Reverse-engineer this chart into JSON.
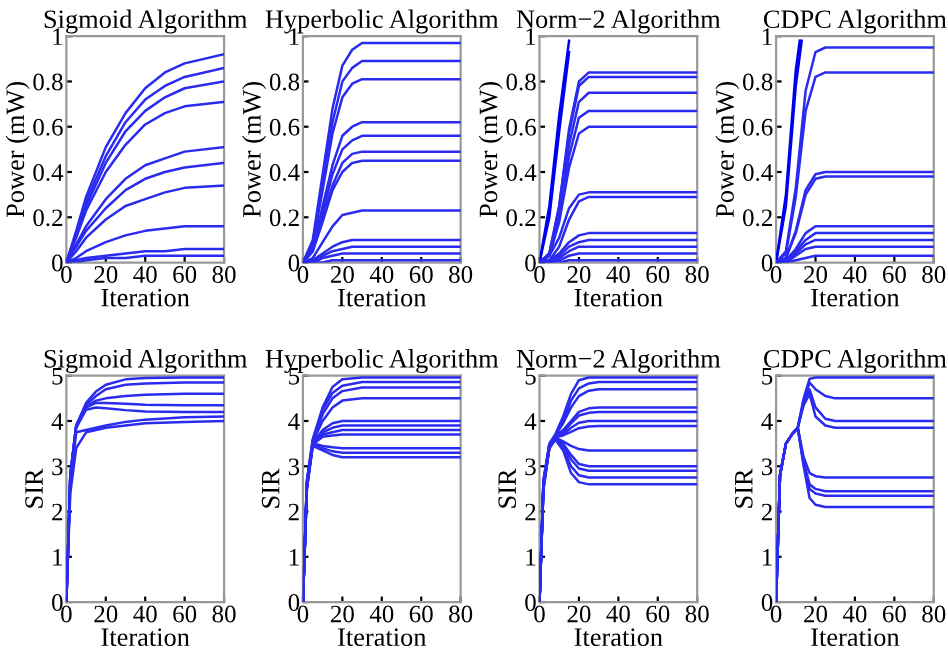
{
  "chart_data": [
    {
      "type": "line",
      "title": "Sigmoid Algorithm",
      "xlabel": "Iteration",
      "ylabel": "Power (mW)",
      "xlim": [
        0,
        80
      ],
      "ylim": [
        0,
        1
      ],
      "xticks": [
        0,
        20,
        40,
        60,
        80
      ],
      "yticks": [
        0,
        0.2,
        0.4,
        0.6,
        0.8,
        1
      ],
      "grid": false,
      "x": [
        0,
        5,
        10,
        20,
        30,
        40,
        50,
        60,
        80
      ],
      "series": [
        {
          "color": "#2b2bf0",
          "values": [
            0,
            0.14,
            0.29,
            0.51,
            0.66,
            0.77,
            0.84,
            0.88,
            0.92
          ]
        },
        {
          "color": "#2b2bf0",
          "values": [
            0,
            0.13,
            0.27,
            0.47,
            0.62,
            0.72,
            0.78,
            0.82,
            0.86
          ]
        },
        {
          "color": "#2b2bf0",
          "values": [
            0,
            0.12,
            0.25,
            0.44,
            0.58,
            0.67,
            0.73,
            0.77,
            0.8
          ]
        },
        {
          "color": "#2b2bf0",
          "values": [
            0,
            0.11,
            0.23,
            0.4,
            0.52,
            0.61,
            0.66,
            0.69,
            0.71
          ]
        },
        {
          "color": "#2b2bf0",
          "values": [
            0,
            0.08,
            0.16,
            0.28,
            0.37,
            0.43,
            0.46,
            0.49,
            0.51
          ]
        },
        {
          "color": "#2b2bf0",
          "values": [
            0,
            0.07,
            0.14,
            0.24,
            0.32,
            0.37,
            0.4,
            0.42,
            0.44
          ]
        },
        {
          "color": "#2b2bf0",
          "values": [
            0,
            0.05,
            0.11,
            0.19,
            0.25,
            0.28,
            0.31,
            0.33,
            0.34
          ]
        },
        {
          "color": "#2b2bf0",
          "values": [
            0,
            0.02,
            0.05,
            0.09,
            0.12,
            0.14,
            0.15,
            0.16,
            0.16
          ]
        },
        {
          "color": "#2b2bf0",
          "values": [
            0,
            0.01,
            0.02,
            0.03,
            0.04,
            0.05,
            0.05,
            0.06,
            0.06
          ]
        },
        {
          "color": "#2b2bf0",
          "values": [
            0,
            0,
            0.01,
            0.02,
            0.02,
            0.03,
            0.03,
            0.03,
            0.03
          ]
        }
      ]
    },
    {
      "type": "line",
      "title": "Hyperbolic Algorithm",
      "xlabel": "Iteration",
      "ylabel": "Power (mW)",
      "xlim": [
        0,
        80
      ],
      "ylim": [
        0,
        1
      ],
      "xticks": [
        0,
        20,
        40,
        60,
        80
      ],
      "yticks": [
        0,
        0.2,
        0.4,
        0.6,
        0.8,
        1
      ],
      "grid": false,
      "x": [
        0,
        5,
        10,
        15,
        20,
        25,
        30,
        40,
        80
      ],
      "series": [
        {
          "color": "#2b2bf0",
          "values": [
            0,
            0.1,
            0.39,
            0.68,
            0.87,
            0.94,
            0.97,
            0.97,
            0.97
          ]
        },
        {
          "color": "#2b2bf0",
          "values": [
            0,
            0.09,
            0.36,
            0.62,
            0.8,
            0.86,
            0.89,
            0.89,
            0.89
          ]
        },
        {
          "color": "#2b2bf0",
          "values": [
            0,
            0.08,
            0.32,
            0.57,
            0.73,
            0.79,
            0.81,
            0.81,
            0.81
          ]
        },
        {
          "color": "#2b2bf0",
          "values": [
            0,
            0.06,
            0.25,
            0.43,
            0.56,
            0.6,
            0.62,
            0.62,
            0.62
          ]
        },
        {
          "color": "#2b2bf0",
          "values": [
            0,
            0.06,
            0.22,
            0.39,
            0.5,
            0.54,
            0.56,
            0.56,
            0.56
          ]
        },
        {
          "color": "#2b2bf0",
          "values": [
            0,
            0.05,
            0.2,
            0.34,
            0.44,
            0.48,
            0.49,
            0.49,
            0.49
          ]
        },
        {
          "color": "#2b2bf0",
          "values": [
            0,
            0.05,
            0.18,
            0.32,
            0.4,
            0.44,
            0.45,
            0.45,
            0.45
          ]
        },
        {
          "color": "#2b2bf0",
          "values": [
            0,
            0.02,
            0.09,
            0.16,
            0.21,
            0.22,
            0.23,
            0.23,
            0.23
          ]
        },
        {
          "color": "#2b2bf0",
          "values": [
            0,
            0.01,
            0.04,
            0.07,
            0.09,
            0.1,
            0.1,
            0.1,
            0.1
          ]
        },
        {
          "color": "#2b2bf0",
          "values": [
            0,
            0.01,
            0.03,
            0.05,
            0.06,
            0.07,
            0.07,
            0.07,
            0.07
          ]
        },
        {
          "color": "#2b2bf0",
          "values": [
            0,
            0,
            0.02,
            0.03,
            0.04,
            0.04,
            0.04,
            0.04,
            0.04
          ]
        },
        {
          "color": "#2b2bf0",
          "values": [
            0,
            0,
            0,
            0.01,
            0.01,
            0.01,
            0.01,
            0.01,
            0.01
          ]
        }
      ]
    },
    {
      "type": "line",
      "title": "Norm−2 Algorithm",
      "xlabel": "Iteration",
      "ylabel": "Power (mW)",
      "xlim": [
        0,
        80
      ],
      "ylim": [
        0,
        1
      ],
      "xticks": [
        0,
        20,
        40,
        60,
        80
      ],
      "yticks": [
        0,
        0.2,
        0.4,
        0.6,
        0.8,
        1
      ],
      "grid": false,
      "x": [
        0,
        5,
        10,
        15,
        20,
        25,
        30,
        40,
        80
      ],
      "series": [
        {
          "color": "#0000f0",
          "values": [
            0,
            0.25,
            0.65,
            0.98,
            null,
            null,
            null,
            null,
            null
          ]
        },
        {
          "color": "#0000f0",
          "values": [
            0,
            0.2,
            0.58,
            0.93,
            null,
            null,
            null,
            null,
            null
          ]
        },
        {
          "color": "#2b2bf0",
          "values": [
            0,
            0.04,
            0.25,
            0.59,
            0.8,
            0.84,
            0.84,
            0.84,
            0.84
          ]
        },
        {
          "color": "#2b2bf0",
          "values": [
            0,
            0.04,
            0.25,
            0.57,
            0.78,
            0.82,
            0.82,
            0.82,
            0.82
          ]
        },
        {
          "color": "#2b2bf0",
          "values": [
            0,
            0.04,
            0.22,
            0.52,
            0.71,
            0.75,
            0.75,
            0.75,
            0.75
          ]
        },
        {
          "color": "#2b2bf0",
          "values": [
            0,
            0.03,
            0.2,
            0.47,
            0.64,
            0.67,
            0.67,
            0.67,
            0.67
          ]
        },
        {
          "color": "#2b2bf0",
          "values": [
            0,
            0.03,
            0.18,
            0.42,
            0.57,
            0.6,
            0.6,
            0.6,
            0.6
          ]
        },
        {
          "color": "#2b2bf0",
          "values": [
            0,
            0.03,
            0.11,
            0.24,
            0.3,
            0.31,
            0.31,
            0.31,
            0.31
          ]
        },
        {
          "color": "#2b2bf0",
          "values": [
            0,
            0.01,
            0.07,
            0.19,
            0.27,
            0.29,
            0.29,
            0.29,
            0.29
          ]
        },
        {
          "color": "#2b2bf0",
          "values": [
            0,
            0.01,
            0.04,
            0.09,
            0.12,
            0.13,
            0.13,
            0.13,
            0.13
          ]
        },
        {
          "color": "#2b2bf0",
          "values": [
            0,
            0.01,
            0.03,
            0.07,
            0.09,
            0.1,
            0.1,
            0.1,
            0.1
          ]
        },
        {
          "color": "#2b2bf0",
          "values": [
            0,
            0,
            0.02,
            0.05,
            0.07,
            0.07,
            0.07,
            0.07,
            0.07
          ]
        },
        {
          "color": "#2b2bf0",
          "values": [
            0,
            0,
            0.01,
            0.03,
            0.04,
            0.04,
            0.04,
            0.04,
            0.04
          ]
        },
        {
          "color": "#2b2bf0",
          "values": [
            0,
            0,
            0,
            0.01,
            0.01,
            0.01,
            0.01,
            0.01,
            0.01
          ]
        }
      ]
    },
    {
      "type": "line",
      "title": "CDPC Algorithm",
      "xlabel": "Iteration",
      "ylabel": "Power (mW)",
      "xlim": [
        0,
        80
      ],
      "ylim": [
        0,
        1
      ],
      "xticks": [
        0,
        20,
        40,
        60,
        80
      ],
      "yticks": [
        0,
        0.2,
        0.4,
        0.6,
        0.8,
        1
      ],
      "grid": false,
      "x": [
        0,
        5,
        10,
        15,
        20,
        25,
        30,
        40,
        80
      ],
      "series": [
        {
          "color": "#0000f0",
          "x": [
            0,
            5,
            10,
            12
          ],
          "values": [
            0,
            0.3,
            0.85,
            0.98
          ]
        },
        {
          "color": "#0000f0",
          "x": [
            0,
            5,
            10,
            13
          ],
          "values": [
            0,
            0.25,
            0.78,
            0.98
          ]
        },
        {
          "color": "#2b2bf0",
          "values": [
            0,
            0.05,
            0.33,
            0.76,
            0.93,
            0.95,
            0.95,
            0.95,
            0.95
          ]
        },
        {
          "color": "#2b2bf0",
          "values": [
            0,
            0.04,
            0.29,
            0.67,
            0.82,
            0.84,
            0.84,
            0.84,
            0.84
          ]
        },
        {
          "color": "#2b2bf0",
          "values": [
            0,
            0.02,
            0.14,
            0.32,
            0.39,
            0.4,
            0.4,
            0.4,
            0.4
          ]
        },
        {
          "color": "#2b2bf0",
          "values": [
            0,
            0.02,
            0.13,
            0.3,
            0.37,
            0.38,
            0.38,
            0.38,
            0.38
          ]
        },
        {
          "color": "#2b2bf0",
          "values": [
            0,
            0.01,
            0.06,
            0.13,
            0.16,
            0.16,
            0.16,
            0.16,
            0.16
          ]
        },
        {
          "color": "#2b2bf0",
          "values": [
            0,
            0.01,
            0.05,
            0.1,
            0.13,
            0.13,
            0.13,
            0.13,
            0.13
          ]
        },
        {
          "color": "#2b2bf0",
          "values": [
            0,
            0.01,
            0.04,
            0.08,
            0.1,
            0.1,
            0.1,
            0.1,
            0.1
          ]
        },
        {
          "color": "#2b2bf0",
          "values": [
            0,
            0,
            0.03,
            0.06,
            0.07,
            0.07,
            0.07,
            0.07,
            0.07
          ]
        },
        {
          "color": "#2b2bf0",
          "values": [
            0,
            0,
            0.01,
            0.02,
            0.03,
            0.03,
            0.03,
            0.03,
            0.03
          ]
        }
      ]
    },
    {
      "type": "line",
      "title": "Sigmoid Algorithm",
      "xlabel": "Iteration",
      "ylabel": "SIR",
      "xlim": [
        0,
        80
      ],
      "ylim": [
        0,
        5
      ],
      "xticks": [
        0,
        20,
        40,
        60,
        80
      ],
      "yticks": [
        0,
        1,
        2,
        3,
        4,
        5
      ],
      "grid": false,
      "x": [
        0,
        2,
        5,
        10,
        15,
        20,
        30,
        40,
        60,
        80
      ],
      "series": [
        {
          "color": "#2b2bf0",
          "values": [
            0,
            2.8,
            3.9,
            4.4,
            4.65,
            4.8,
            4.92,
            4.95,
            4.96,
            4.96
          ]
        },
        {
          "color": "#2b2bf0",
          "values": [
            0,
            2.8,
            3.9,
            4.35,
            4.55,
            4.7,
            4.8,
            4.83,
            4.85,
            4.85
          ]
        },
        {
          "color": "#2b2bf0",
          "values": [
            0,
            2.8,
            3.9,
            4.3,
            4.45,
            4.5,
            4.55,
            4.58,
            4.6,
            4.6
          ]
        },
        {
          "color": "#2b2bf0",
          "values": [
            0,
            2.8,
            3.9,
            4.3,
            4.4,
            4.4,
            4.38,
            4.36,
            4.35,
            4.35
          ]
        },
        {
          "color": "#2b2bf0",
          "values": [
            0,
            2.8,
            3.85,
            4.25,
            4.3,
            4.28,
            4.24,
            4.21,
            4.2,
            4.2
          ]
        },
        {
          "color": "#2b2bf0",
          "values": [
            0,
            2.6,
            3.75,
            3.8,
            3.85,
            3.9,
            3.98,
            4.03,
            4.08,
            4.1
          ]
        },
        {
          "color": "#2b2bf0",
          "values": [
            0,
            2.4,
            3.4,
            3.75,
            3.8,
            3.85,
            3.9,
            3.95,
            3.98,
            4.0
          ]
        }
      ]
    },
    {
      "type": "line",
      "title": "Hyperbolic Algorithm",
      "xlabel": "Iteration",
      "ylabel": "SIR",
      "xlim": [
        0,
        80
      ],
      "ylim": [
        0,
        5
      ],
      "xticks": [
        0,
        20,
        40,
        60,
        80
      ],
      "yticks": [
        0,
        1,
        2,
        3,
        4,
        5
      ],
      "grid": false,
      "x": [
        0,
        2,
        5,
        10,
        15,
        20,
        30,
        40,
        60,
        80
      ],
      "series": [
        {
          "color": "#2b2bf0",
          "values": [
            0,
            2.7,
            3.6,
            4.3,
            4.75,
            4.92,
            4.96,
            4.96,
            4.96,
            4.96
          ]
        },
        {
          "color": "#2b2bf0",
          "values": [
            0,
            2.65,
            3.58,
            4.25,
            4.62,
            4.78,
            4.86,
            4.86,
            4.86,
            4.86
          ]
        },
        {
          "color": "#2b2bf0",
          "values": [
            0,
            2.6,
            3.56,
            4.15,
            4.5,
            4.66,
            4.74,
            4.74,
            4.74,
            4.74
          ]
        },
        {
          "color": "#2b2bf0",
          "values": [
            0,
            2.55,
            3.54,
            4.0,
            4.3,
            4.45,
            4.5,
            4.5,
            4.5,
            4.5
          ]
        },
        {
          "color": "#2b2bf0",
          "values": [
            0,
            2.5,
            3.52,
            3.8,
            3.95,
            4.0,
            4.0,
            4.0,
            4.0,
            4.0
          ]
        },
        {
          "color": "#2b2bf0",
          "values": [
            0,
            2.62,
            3.5,
            3.75,
            3.85,
            3.9,
            3.9,
            3.9,
            3.9,
            3.9
          ]
        },
        {
          "color": "#2b2bf0",
          "values": [
            0,
            2.57,
            3.49,
            3.7,
            3.75,
            3.8,
            3.8,
            3.8,
            3.8,
            3.8
          ]
        },
        {
          "color": "#2b2bf0",
          "values": [
            0,
            2.52,
            3.48,
            3.65,
            3.68,
            3.7,
            3.7,
            3.7,
            3.7,
            3.7
          ]
        },
        {
          "color": "#2b2bf0",
          "values": [
            0,
            2.64,
            3.51,
            3.45,
            3.42,
            3.4,
            3.4,
            3.4,
            3.4,
            3.4
          ]
        },
        {
          "color": "#2b2bf0",
          "values": [
            0,
            2.58,
            3.47,
            3.4,
            3.33,
            3.3,
            3.3,
            3.3,
            3.3,
            3.3
          ]
        },
        {
          "color": "#2b2bf0",
          "values": [
            0,
            2.48,
            3.45,
            3.35,
            3.25,
            3.2,
            3.2,
            3.2,
            3.2,
            3.2
          ]
        }
      ]
    },
    {
      "type": "line",
      "title": "Norm−2 Algorithm",
      "xlabel": "Iteration",
      "ylabel": "SIR",
      "xlim": [
        0,
        80
      ],
      "ylim": [
        0,
        5
      ],
      "xticks": [
        0,
        20,
        40,
        60,
        80
      ],
      "yticks": [
        0,
        1,
        2,
        3,
        4,
        5
      ],
      "grid": false,
      "x": [
        0,
        2,
        5,
        8,
        12,
        16,
        20,
        25,
        30,
        40,
        60,
        80
      ],
      "series": [
        {
          "color": "#2b2bf0",
          "values": [
            0,
            2.7,
            3.5,
            3.7,
            4.1,
            4.6,
            4.9,
            4.96,
            4.96,
            4.96,
            4.96,
            4.96
          ]
        },
        {
          "color": "#2b2bf0",
          "values": [
            0,
            2.66,
            3.49,
            3.69,
            4.0,
            4.45,
            4.72,
            4.83,
            4.86,
            4.86,
            4.86,
            4.86
          ]
        },
        {
          "color": "#2b2bf0",
          "values": [
            0,
            2.62,
            3.48,
            3.68,
            3.95,
            4.3,
            4.55,
            4.67,
            4.7,
            4.7,
            4.7,
            4.7
          ]
        },
        {
          "color": "#2b2bf0",
          "values": [
            0,
            2.58,
            3.47,
            3.67,
            3.8,
            4.0,
            4.2,
            4.28,
            4.3,
            4.3,
            4.3,
            4.3
          ]
        },
        {
          "color": "#2b2bf0",
          "values": [
            0,
            2.54,
            3.46,
            3.66,
            3.75,
            3.95,
            4.12,
            4.18,
            4.2,
            4.2,
            4.2,
            4.2
          ]
        },
        {
          "color": "#2b2bf0",
          "values": [
            0,
            2.5,
            3.45,
            3.65,
            3.7,
            3.85,
            3.96,
            4.0,
            4.0,
            4.0,
            4.0,
            4.0
          ]
        },
        {
          "color": "#2b2bf0",
          "values": [
            0,
            2.68,
            3.44,
            3.64,
            3.68,
            3.76,
            3.84,
            3.88,
            3.89,
            3.89,
            3.89,
            3.89
          ]
        },
        {
          "color": "#2b2bf0",
          "values": [
            0,
            2.64,
            3.43,
            3.63,
            3.55,
            3.45,
            3.38,
            3.35,
            3.35,
            3.35,
            3.35,
            3.35
          ]
        },
        {
          "color": "#2b2bf0",
          "values": [
            0,
            2.6,
            3.42,
            3.62,
            3.5,
            3.25,
            3.05,
            3.0,
            3.0,
            3.0,
            3.0,
            3.0
          ]
        },
        {
          "color": "#2b2bf0",
          "values": [
            0,
            2.56,
            3.41,
            3.61,
            3.45,
            3.15,
            2.95,
            2.9,
            2.9,
            2.9,
            2.9,
            2.9
          ]
        },
        {
          "color": "#2b2bf0",
          "values": [
            0,
            2.52,
            3.4,
            3.6,
            3.4,
            3.0,
            2.8,
            2.75,
            2.75,
            2.75,
            2.75,
            2.75
          ]
        },
        {
          "color": "#2b2bf0",
          "values": [
            0,
            2.48,
            3.39,
            3.59,
            3.35,
            2.85,
            2.65,
            2.6,
            2.6,
            2.6,
            2.6,
            2.6
          ]
        }
      ]
    },
    {
      "type": "line",
      "title": "CDPC Algorithm",
      "xlabel": "Iteration",
      "ylabel": "SIR",
      "xlim": [
        0,
        80
      ],
      "ylim": [
        0,
        5
      ],
      "xticks": [
        0,
        20,
        40,
        60,
        80
      ],
      "yticks": [
        0,
        1,
        2,
        3,
        4,
        5
      ],
      "grid": false,
      "x": [
        0,
        2,
        5,
        8,
        11,
        14,
        17,
        20,
        25,
        30,
        80
      ],
      "series": [
        {
          "color": "#2b2bf0",
          "values": [
            0,
            2.8,
            3.5,
            3.7,
            3.85,
            4.5,
            4.93,
            4.96,
            4.96,
            4.96,
            4.96
          ]
        },
        {
          "color": "#2b2bf0",
          "values": [
            0,
            2.8,
            3.5,
            3.7,
            3.85,
            4.45,
            4.85,
            4.7,
            4.55,
            4.5,
            4.5
          ]
        },
        {
          "color": "#2b2bf0",
          "values": [
            0,
            2.8,
            3.5,
            3.7,
            3.85,
            4.4,
            4.7,
            4.3,
            4.05,
            4.0,
            4.0
          ]
        },
        {
          "color": "#2b2bf0",
          "values": [
            0,
            2.8,
            3.5,
            3.7,
            3.85,
            4.35,
            4.6,
            4.1,
            3.9,
            3.85,
            3.85
          ]
        },
        {
          "color": "#2b2bf0",
          "values": [
            0,
            2.8,
            3.5,
            3.7,
            3.85,
            3.2,
            2.85,
            2.78,
            2.75,
            2.75,
            2.75
          ]
        },
        {
          "color": "#2b2bf0",
          "values": [
            0,
            2.8,
            3.5,
            3.7,
            3.85,
            3.1,
            2.6,
            2.5,
            2.45,
            2.45,
            2.45
          ]
        },
        {
          "color": "#2b2bf0",
          "values": [
            0,
            2.8,
            3.5,
            3.7,
            3.85,
            3.05,
            2.5,
            2.4,
            2.35,
            2.35,
            2.35
          ]
        },
        {
          "color": "#2b2bf0",
          "values": [
            0,
            2.8,
            3.5,
            3.7,
            3.85,
            3.0,
            2.3,
            2.15,
            2.1,
            2.1,
            2.1
          ]
        }
      ]
    }
  ]
}
